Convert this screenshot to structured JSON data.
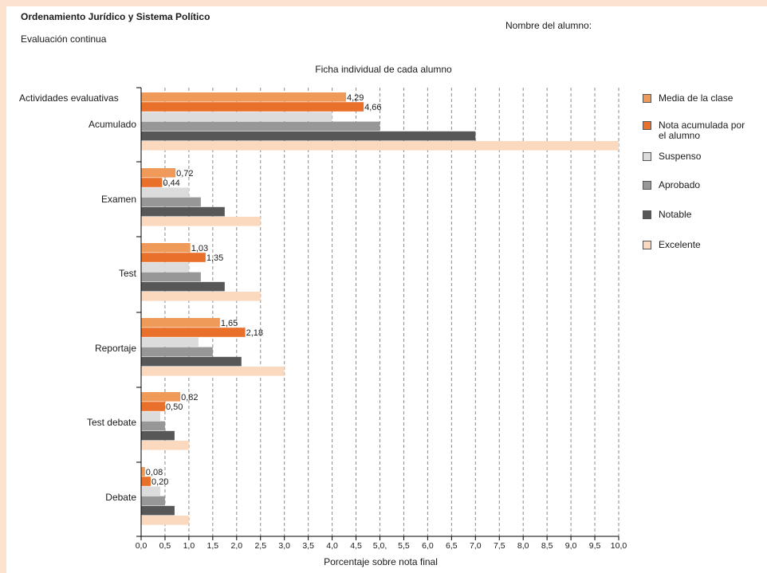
{
  "header": {
    "course": "Ordenamiento Jurídico y Sistema Político",
    "subtitle": "Evaluación continua",
    "student_label": "Nombre del alumno:"
  },
  "chart_data": {
    "type": "bar",
    "orientation": "horizontal",
    "title": "Ficha individual de cada alumno",
    "xlabel": "Porcentaje sobre nota final",
    "ylabel": "Actividades evaluativas",
    "xlim": [
      0,
      10
    ],
    "x_ticks": [
      "0,0",
      "0,5",
      "1,0",
      "1,5",
      "2,0",
      "2,5",
      "3,0",
      "3,5",
      "4,0",
      "4,5",
      "5,0,",
      "5,5",
      "6,0",
      "6,5",
      "7,0",
      "7,5",
      "8,0",
      "8,5",
      "9,0",
      "9,5",
      "10,0"
    ],
    "grid": "vertical dashed",
    "legend_position": "right",
    "categories": [
      "Acumulado",
      "Examen",
      "Test",
      "Reportaje",
      "Test debate",
      "Debate"
    ],
    "series": [
      {
        "name": "Media de la clase",
        "color": "#f09a5a",
        "values": [
          4.29,
          0.72,
          1.03,
          1.65,
          0.82,
          0.08
        ],
        "labels": [
          "4,29",
          "0,72",
          "1,03",
          "1,65",
          "0,82",
          "0,08"
        ]
      },
      {
        "name": "Nota acumulada por el alumno",
        "color": "#e8702a",
        "values": [
          4.66,
          0.44,
          1.35,
          2.18,
          0.5,
          0.2
        ],
        "labels": [
          "4,66",
          "0,44",
          "1,35",
          "2,18",
          "0,50",
          "0,20"
        ]
      },
      {
        "name": "Suspenso",
        "color": "#dcdcdc",
        "values": [
          4.0,
          1.0,
          1.0,
          1.2,
          0.4,
          0.4
        ]
      },
      {
        "name": "Aprobado",
        "color": "#979797",
        "values": [
          5.0,
          1.25,
          1.25,
          1.5,
          0.5,
          0.5
        ]
      },
      {
        "name": "Notable",
        "color": "#575757",
        "values": [
          7.0,
          1.75,
          1.75,
          2.1,
          0.7,
          0.7
        ]
      },
      {
        "name": "Excelente",
        "color": "#fbd9bf",
        "values": [
          10.0,
          2.5,
          2.5,
          3.0,
          1.0,
          1.0
        ]
      }
    ]
  }
}
